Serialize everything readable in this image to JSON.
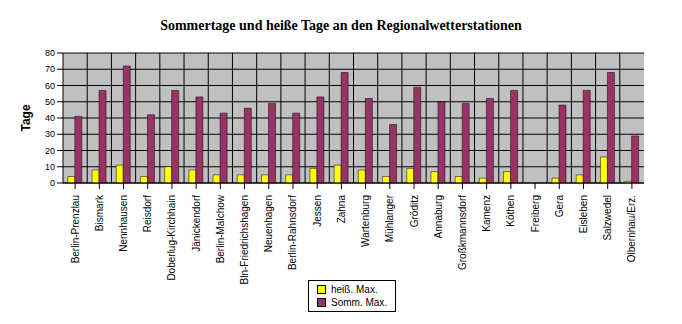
{
  "chart_data": {
    "type": "bar",
    "title": "Sommertage und heiße Tage an den Regionalwetterstationen",
    "ylabel": "Tage",
    "categories": [
      "Berlin-Prenzlau",
      "Bismark",
      "Nennhausen",
      "Reisdorf",
      "Doberlug-Kirchhain",
      "Jänickendorf",
      "Berlin-Malchow",
      "Bln-Friedrichshagen",
      "Neuenhagen",
      "Berlin-Rahnsdorf",
      "Jessen",
      "Zahna",
      "Wartenburg",
      "Mühlanger",
      "Gröditz",
      "Annaburg",
      "Großkmannsdorf",
      "Kamenz",
      "Köthen",
      "Freiberg",
      "Gera",
      "Eisleben",
      "Salzwedel",
      "Olbernhau/Erz."
    ],
    "series": [
      {
        "name": "heiß. Max.",
        "color": "#ffff00",
        "values": [
          4,
          8,
          11,
          4,
          10,
          8,
          5,
          5,
          5,
          5,
          9,
          11,
          8,
          4,
          9,
          7,
          4,
          3,
          7,
          0,
          3,
          5,
          16,
          1
        ]
      },
      {
        "name": "Somm. Max.",
        "color": "#993366",
        "values": [
          41,
          57,
          72,
          42,
          57,
          53,
          43,
          46,
          49,
          43,
          53,
          68,
          52,
          36,
          59,
          50,
          49,
          52,
          57,
          0,
          48,
          57,
          68,
          29
        ]
      }
    ],
    "ylim": [
      0,
      80
    ],
    "yticks": [
      0,
      10,
      20,
      30,
      40,
      50,
      60,
      70,
      80
    ],
    "grid": true,
    "legend": "bottom"
  }
}
